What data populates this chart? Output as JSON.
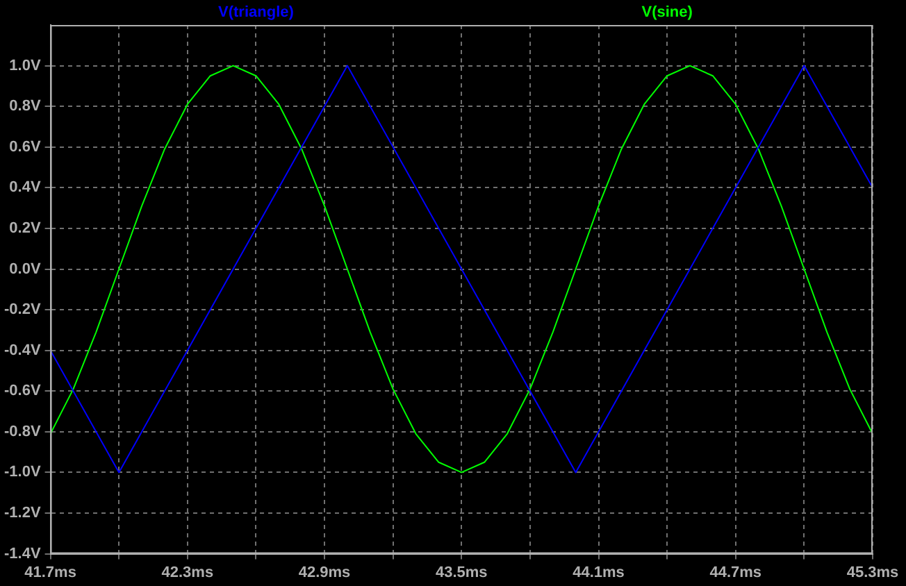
{
  "chart_data": {
    "type": "line",
    "series": [
      {
        "name": "V(triangle)",
        "color": "#0000ff",
        "x": [
          41.7,
          42.0,
          43.0,
          44.0,
          45.0,
          45.3
        ],
        "values": [
          -0.4,
          -1,
          1,
          -1,
          1,
          0.4
        ]
      },
      {
        "name": "V(sine)",
        "color": "#00ff00",
        "x": [
          41.7,
          41.8,
          41.9,
          42.0,
          42.1,
          42.2,
          42.3,
          42.4,
          42.5,
          42.6,
          42.7,
          42.8,
          42.9,
          43.0,
          43.1,
          43.2,
          43.3,
          43.4,
          43.5,
          43.6,
          43.7,
          43.8,
          43.9,
          44.0,
          44.1,
          44.2,
          44.3,
          44.4,
          44.5,
          44.6,
          44.7,
          44.8,
          44.9,
          45.0,
          45.1,
          45.2,
          45.3
        ],
        "values": [
          -0.81,
          -0.59,
          -0.31,
          0,
          0.31,
          0.59,
          0.81,
          0.95,
          1,
          0.95,
          0.81,
          0.59,
          0.31,
          0,
          -0.31,
          -0.59,
          -0.81,
          -0.95,
          -1,
          -0.95,
          -0.81,
          -0.59,
          -0.31,
          0,
          0.31,
          0.59,
          0.81,
          0.95,
          1,
          0.95,
          0.81,
          0.59,
          0.31,
          0,
          -0.31,
          -0.59,
          -0.81
        ]
      }
    ],
    "xlim": [
      41.7,
      45.3
    ],
    "xticks": [
      {
        "value": 41.7,
        "label": "41.7ms"
      },
      {
        "value": 42.0,
        "label": null
      },
      {
        "value": 42.3,
        "label": "42.3ms"
      },
      {
        "value": 42.6,
        "label": null
      },
      {
        "value": 42.9,
        "label": "42.9ms"
      },
      {
        "value": 43.2,
        "label": null
      },
      {
        "value": 43.5,
        "label": "43.5ms"
      },
      {
        "value": 43.8,
        "label": null
      },
      {
        "value": 44.1,
        "label": "44.1ms"
      },
      {
        "value": 44.4,
        "label": null
      },
      {
        "value": 44.7,
        "label": "44.7ms"
      },
      {
        "value": 45.0,
        "label": null
      },
      {
        "value": 45.3,
        "label": "45.3ms"
      }
    ],
    "ylim": [
      -1.4,
      1.2
    ],
    "yticks": [
      {
        "value": -1.4,
        "label": "-1.4V"
      },
      {
        "value": -1.2,
        "label": "-1.2V"
      },
      {
        "value": -1.0,
        "label": "-1.0V"
      },
      {
        "value": -0.8,
        "label": "-0.8V"
      },
      {
        "value": -0.6,
        "label": "-0.6V"
      },
      {
        "value": -0.4,
        "label": "-0.4V"
      },
      {
        "value": -0.2,
        "label": "-0.2V"
      },
      {
        "value": 0,
        "label": "0.0V"
      },
      {
        "value": 0.2,
        "label": "0.2V"
      },
      {
        "value": 0.4,
        "label": "0.4V"
      },
      {
        "value": 0.6,
        "label": "0.6V"
      },
      {
        "value": 0.8,
        "label": "0.8V"
      },
      {
        "value": 1.0,
        "label": "1.0V"
      }
    ],
    "grid": true,
    "legend": "top",
    "marker": "none",
    "line_style": "solid"
  }
}
